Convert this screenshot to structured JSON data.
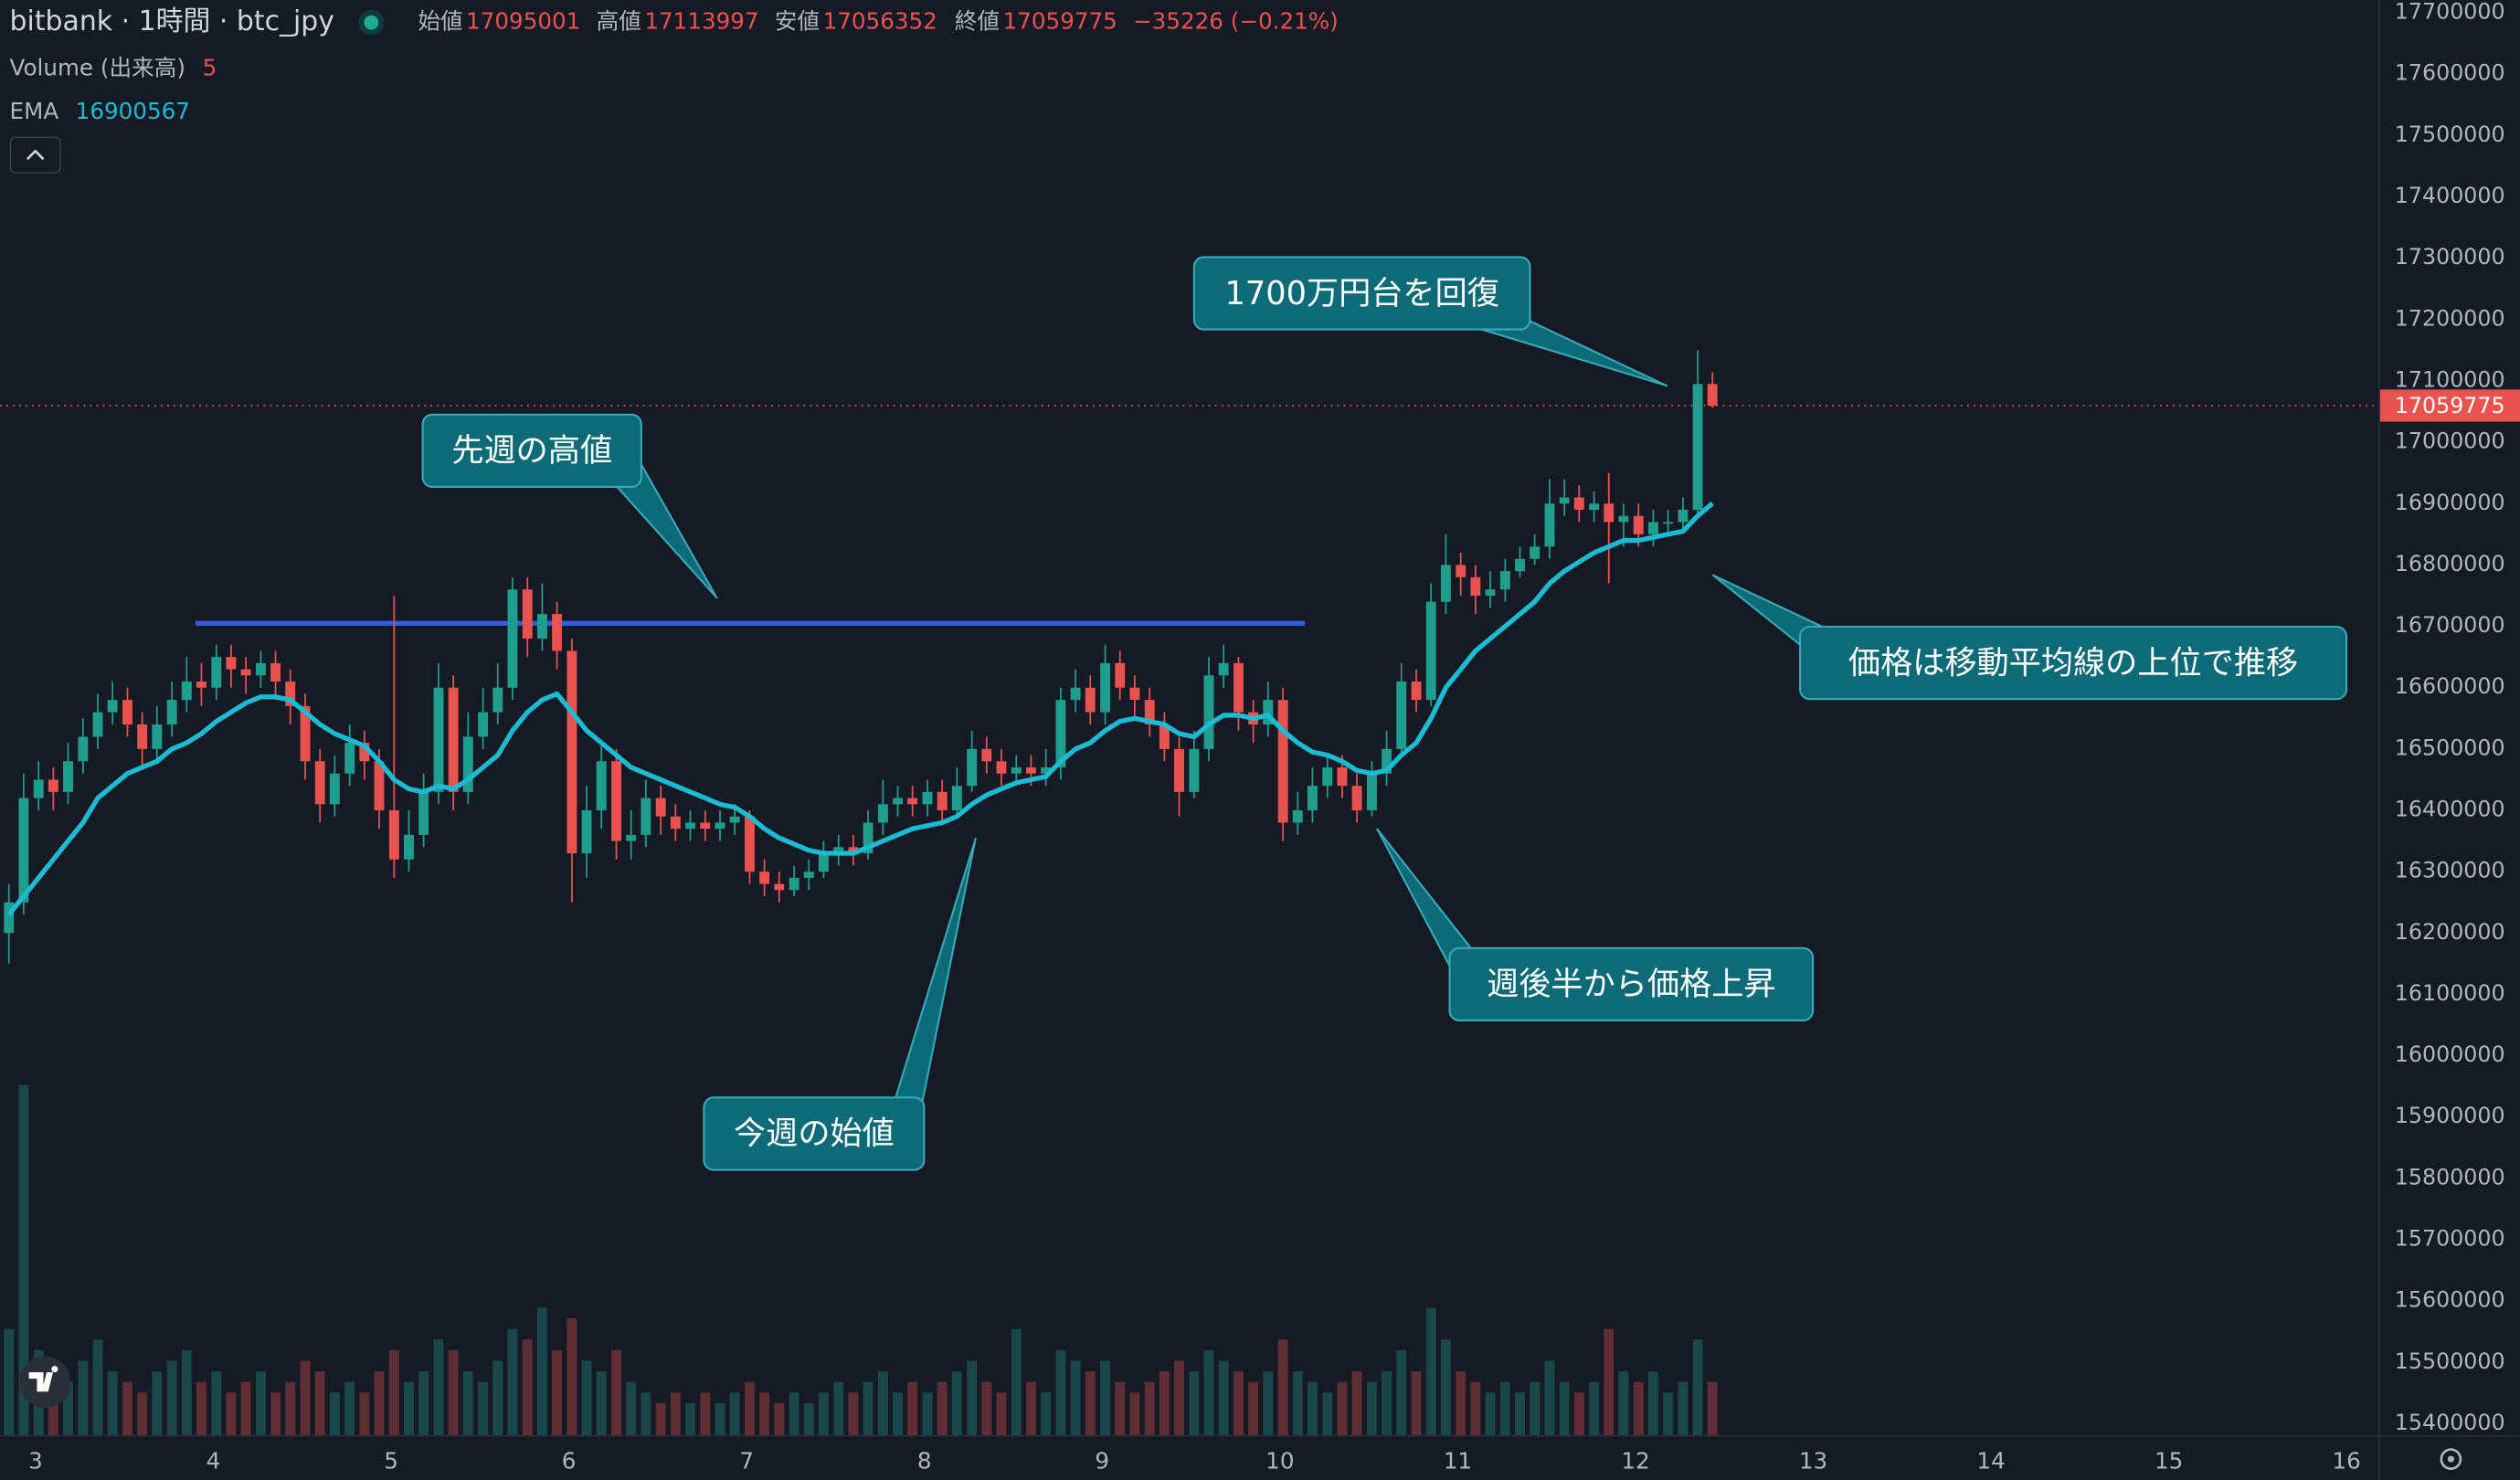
{
  "header": {
    "symbol": "bitbank · 1時間 · btc_jpy",
    "open_label": "始値",
    "open": 17095001,
    "high_label": "高値",
    "high": 17113997,
    "low_label": "安値",
    "low": 17056352,
    "close_label": "終値",
    "close": 17059775,
    "change": "−35226 (−0.21%)"
  },
  "chart_data": {
    "type": "candlestick",
    "up_color": "#1f9e8e",
    "down_color": "#e8524f",
    "xlim": [
      2.8,
      16.18
    ],
    "xticks": [
      3,
      4,
      5,
      6,
      7,
      8,
      9,
      10,
      11,
      12,
      13,
      14,
      15,
      16
    ],
    "ylim": [
      15381700,
      17721000
    ],
    "yticks": [
      15400000,
      15500000,
      15600000,
      15700000,
      15800000,
      15900000,
      16000000,
      16100000,
      16200000,
      16300000,
      16400000,
      16500000,
      16600000,
      16700000,
      16800000,
      16900000,
      17000000,
      17100000,
      17200000,
      17300000,
      17400000,
      17500000,
      17600000,
      17700000
    ],
    "x": [
      2.85,
      2.933,
      3.017,
      3.1,
      3.183,
      3.267,
      3.35,
      3.433,
      3.517,
      3.6,
      3.683,
      3.767,
      3.85,
      3.933,
      4.017,
      4.1,
      4.183,
      4.267,
      4.35,
      4.433,
      4.517,
      4.6,
      4.683,
      4.767,
      4.85,
      4.933,
      5.017,
      5.1,
      5.183,
      5.267,
      5.35,
      5.433,
      5.517,
      5.6,
      5.683,
      5.767,
      5.85,
      5.933,
      6.017,
      6.1,
      6.183,
      6.267,
      6.35,
      6.433,
      6.517,
      6.6,
      6.683,
      6.767,
      6.85,
      6.933,
      7.017,
      7.1,
      7.183,
      7.267,
      7.35,
      7.433,
      7.517,
      7.6,
      7.683,
      7.767,
      7.85,
      7.933,
      8.017,
      8.1,
      8.183,
      8.267,
      8.35,
      8.433,
      8.517,
      8.6,
      8.683,
      8.767,
      8.85,
      8.933,
      9.017,
      9.1,
      9.183,
      9.267,
      9.35,
      9.433,
      9.517,
      9.6,
      9.683,
      9.767,
      9.85,
      9.933,
      10.017,
      10.1,
      10.183,
      10.267,
      10.35,
      10.433,
      10.517,
      10.6,
      10.683,
      10.767,
      10.85,
      10.933,
      11.017,
      11.1,
      11.183,
      11.267,
      11.35,
      11.433,
      11.517,
      11.6,
      11.683,
      11.767,
      11.85,
      11.933,
      12.017,
      12.1,
      12.183,
      12.267,
      12.35,
      12.433
    ],
    "open": [
      16200000,
      16250000,
      16420000,
      16450000,
      16430000,
      16480000,
      16520000,
      16560000,
      16580000,
      16540000,
      16500000,
      16540000,
      16580000,
      16610000,
      16600000,
      16650000,
      16630000,
      16620000,
      16640000,
      16610000,
      16570000,
      16480000,
      16410000,
      16460000,
      16510000,
      16480000,
      16400000,
      16320000,
      16360000,
      16430000,
      16600000,
      16430000,
      16520000,
      16560000,
      16600000,
      16760000,
      16680000,
      16720000,
      16660000,
      16330000,
      16400000,
      16480000,
      16350000,
      16360000,
      16420000,
      16390000,
      16370000,
      16380000,
      16370000,
      16380000,
      16390000,
      16300000,
      16280000,
      16270000,
      16290000,
      16300000,
      16330000,
      16340000,
      16330000,
      16380000,
      16410000,
      16420000,
      16410000,
      16430000,
      16400000,
      16440000,
      16500000,
      16480000,
      16460000,
      16470000,
      16460000,
      16470000,
      16580000,
      16600000,
      16560000,
      16640000,
      16600000,
      16580000,
      16540000,
      16500000,
      16430000,
      16500000,
      16620000,
      16640000,
      16560000,
      16540000,
      16580000,
      16380000,
      16400000,
      16440000,
      16470000,
      16440000,
      16400000,
      16460000,
      16500000,
      16610000,
      16580000,
      16740000,
      16800000,
      16780000,
      16750000,
      16760000,
      16790000,
      16810000,
      16830000,
      16900000,
      16910000,
      16890000,
      16900000,
      16870000,
      16880000,
      16850000,
      16870000,
      16870000,
      16890000,
      17095001
    ],
    "high": [
      16280000,
      16460000,
      16480000,
      16470000,
      16510000,
      16550000,
      16590000,
      16610000,
      16600000,
      16560000,
      16570000,
      16610000,
      16650000,
      16640000,
      16670000,
      16670000,
      16650000,
      16660000,
      16660000,
      16630000,
      16590000,
      16500000,
      16490000,
      16540000,
      16530000,
      16500000,
      16750000,
      16400000,
      16460000,
      16640000,
      16620000,
      16560000,
      16600000,
      16640000,
      16780000,
      16780000,
      16770000,
      16740000,
      16680000,
      16440000,
      16510000,
      16500000,
      16400000,
      16450000,
      16440000,
      16410000,
      16400000,
      16400000,
      16400000,
      16410000,
      16400000,
      16320000,
      16300000,
      16310000,
      16320000,
      16350000,
      16360000,
      16360000,
      16400000,
      16450000,
      16440000,
      16440000,
      16450000,
      16450000,
      16470000,
      16530000,
      16520000,
      16500000,
      16490000,
      16490000,
      16500000,
      16600000,
      16630000,
      16620000,
      16670000,
      16660000,
      16620000,
      16600000,
      16560000,
      16520000,
      16530000,
      16650000,
      16670000,
      16650000,
      16580000,
      16610000,
      16600000,
      16430000,
      16470000,
      16490000,
      16490000,
      16460000,
      16480000,
      16530000,
      16640000,
      16630000,
      16770000,
      16850000,
      16820000,
      16800000,
      16790000,
      16810000,
      16830000,
      16850000,
      16940000,
      16940000,
      16930000,
      16920000,
      16950000,
      16900000,
      16900000,
      16890000,
      16890000,
      16910000,
      17150000,
      17113997
    ],
    "low": [
      16150000,
      16230000,
      16400000,
      16400000,
      16410000,
      16460000,
      16500000,
      16540000,
      16520000,
      16470000,
      16480000,
      16520000,
      16560000,
      16570000,
      16580000,
      16600000,
      16590000,
      16600000,
      16580000,
      16540000,
      16450000,
      16380000,
      16390000,
      16440000,
      16450000,
      16370000,
      16290000,
      16300000,
      16340000,
      16410000,
      16400000,
      16410000,
      16500000,
      16540000,
      16580000,
      16650000,
      16660000,
      16630000,
      16250000,
      16290000,
      16370000,
      16320000,
      16320000,
      16340000,
      16360000,
      16350000,
      16350000,
      16350000,
      16350000,
      16360000,
      16280000,
      16260000,
      16250000,
      16260000,
      16270000,
      16290000,
      16310000,
      16310000,
      16320000,
      16360000,
      16390000,
      16390000,
      16390000,
      16380000,
      16390000,
      16430000,
      16460000,
      16440000,
      16440000,
      16440000,
      16440000,
      16450000,
      16560000,
      16540000,
      16540000,
      16580000,
      16550000,
      16520000,
      16480000,
      16390000,
      16420000,
      16480000,
      16600000,
      16530000,
      16510000,
      16520000,
      16350000,
      16360000,
      16380000,
      16420000,
      16420000,
      16380000,
      16390000,
      16440000,
      16490000,
      16560000,
      16570000,
      16720000,
      16750000,
      16720000,
      16730000,
      16740000,
      16780000,
      16800000,
      16810000,
      16880000,
      16870000,
      16870000,
      16770000,
      16830000,
      16830000,
      16830000,
      16850000,
      16860000,
      16880000,
      17056352
    ],
    "close": [
      16250000,
      16420000,
      16450000,
      16430000,
      16480000,
      16520000,
      16560000,
      16580000,
      16540000,
      16500000,
      16540000,
      16580000,
      16610000,
      16600000,
      16650000,
      16630000,
      16620000,
      16640000,
      16610000,
      16570000,
      16480000,
      16410000,
      16460000,
      16510000,
      16480000,
      16400000,
      16320000,
      16360000,
      16430000,
      16600000,
      16430000,
      16520000,
      16560000,
      16600000,
      16760000,
      16680000,
      16720000,
      16660000,
      16330000,
      16400000,
      16480000,
      16350000,
      16360000,
      16420000,
      16390000,
      16370000,
      16380000,
      16370000,
      16380000,
      16390000,
      16300000,
      16280000,
      16270000,
      16290000,
      16300000,
      16330000,
      16340000,
      16330000,
      16380000,
      16410000,
      16420000,
      16410000,
      16430000,
      16400000,
      16440000,
      16500000,
      16480000,
      16460000,
      16470000,
      16460000,
      16470000,
      16580000,
      16600000,
      16560000,
      16640000,
      16600000,
      16580000,
      16540000,
      16500000,
      16430000,
      16500000,
      16620000,
      16640000,
      16560000,
      16540000,
      16580000,
      16380000,
      16400000,
      16440000,
      16470000,
      16440000,
      16400000,
      16460000,
      16500000,
      16610000,
      16580000,
      16740000,
      16800000,
      16780000,
      16750000,
      16760000,
      16790000,
      16810000,
      16830000,
      16900000,
      16910000,
      16890000,
      16900000,
      16870000,
      16880000,
      16850000,
      16870000,
      16870000,
      16890000,
      17095001,
      17059775
    ],
    "ema": {
      "name": "EMA",
      "color": "#19bcd3",
      "values": [
        16230000,
        16260000,
        16290000,
        16320000,
        16350000,
        16380000,
        16420000,
        16440000,
        16460000,
        16470000,
        16480000,
        16500000,
        16510000,
        16525000,
        16545000,
        16560000,
        16575000,
        16585000,
        16585000,
        16580000,
        16560000,
        16540000,
        16525000,
        16515000,
        16505000,
        16480000,
        16450000,
        16435000,
        16430000,
        16440000,
        16435000,
        16450000,
        16470000,
        16490000,
        16530000,
        16560000,
        16580000,
        16590000,
        16560000,
        16530000,
        16510000,
        16490000,
        16470000,
        16460000,
        16450000,
        16440000,
        16430000,
        16420000,
        16410000,
        16405000,
        16390000,
        16370000,
        16355000,
        16345000,
        16335000,
        16330000,
        16330000,
        16330000,
        16340000,
        16350000,
        16360000,
        16370000,
        16375000,
        16380000,
        16390000,
        16410000,
        16425000,
        16435000,
        16445000,
        16450000,
        16455000,
        16480000,
        16500000,
        16510000,
        16530000,
        16545000,
        16550000,
        16545000,
        16540000,
        16525000,
        16520000,
        16540000,
        16555000,
        16555000,
        16550000,
        16555000,
        16530000,
        16510000,
        16495000,
        16490000,
        16480000,
        16465000,
        16460000,
        16465000,
        16490000,
        16510000,
        16550000,
        16600000,
        16630000,
        16660000,
        16680000,
        16700000,
        16720000,
        16740000,
        16770000,
        16790000,
        16805000,
        16820000,
        16830000,
        16840000,
        16840000,
        16845000,
        16850000,
        16855000,
        16880000,
        16900567
      ]
    },
    "volume": {
      "name": "Volume (出来高)",
      "values": [
        10,
        33,
        8,
        6,
        5,
        7,
        9,
        6,
        5,
        4,
        6,
        7,
        8,
        5,
        6,
        4,
        5,
        6,
        4,
        5,
        7,
        6,
        4,
        5,
        4,
        6,
        8,
        5,
        6,
        9,
        8,
        6,
        5,
        7,
        10,
        9,
        12,
        8,
        11,
        7,
        6,
        8,
        5,
        4,
        3,
        4,
        3,
        4,
        3,
        4,
        5,
        4,
        3,
        4,
        3,
        4,
        5,
        4,
        5,
        6,
        4,
        5,
        4,
        5,
        6,
        7,
        5,
        4,
        10,
        5,
        4,
        8,
        7,
        6,
        7,
        5,
        4,
        5,
        6,
        7,
        6,
        8,
        7,
        6,
        5,
        6,
        9,
        6,
        5,
        4,
        5,
        6,
        5,
        6,
        8,
        6,
        12,
        9,
        6,
        5,
        4,
        5,
        4,
        5,
        7,
        5,
        4,
        5,
        10,
        6,
        5,
        6,
        4,
        5,
        9,
        5
      ]
    },
    "level": {
      "value": 16705000,
      "x": [
        3.9,
        10.14
      ],
      "color": "#2f5fe6"
    },
    "annotations": [
      {
        "text": "1700万円台を回復"
      },
      {
        "text": "先週の高値"
      },
      {
        "text": "今週の始値"
      },
      {
        "text": "週後半から価格上昇"
      },
      {
        "text": "価格は移動平均線の上位で推移"
      }
    ]
  }
}
